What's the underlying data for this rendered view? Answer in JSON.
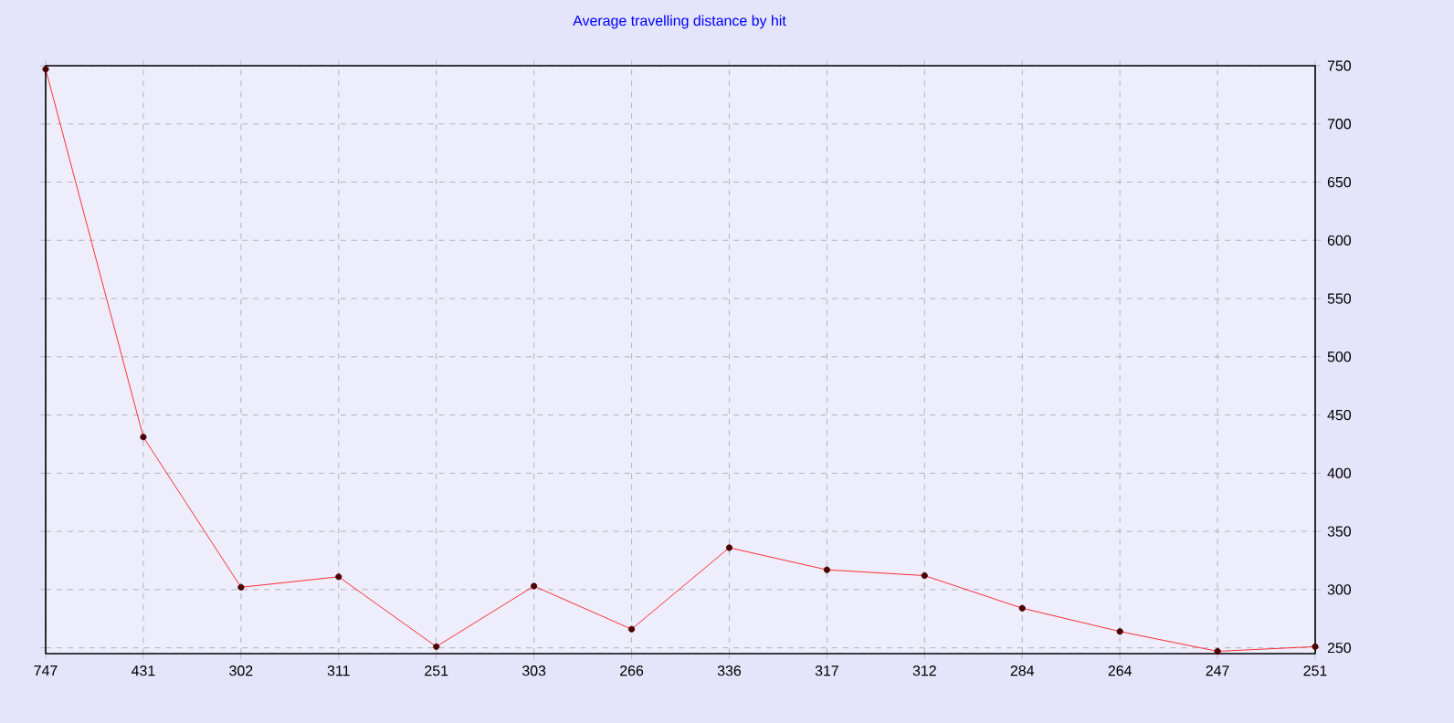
{
  "chart_data": {
    "type": "line",
    "title": "Average travelling distance by hit",
    "categories": [
      "747",
      "431",
      "302",
      "311",
      "251",
      "303",
      "266",
      "336",
      "317",
      "312",
      "284",
      "264",
      "247",
      "251"
    ],
    "values": [
      747,
      431,
      302,
      311,
      251,
      303,
      266,
      336,
      317,
      312,
      284,
      264,
      247,
      251
    ],
    "color": "#ff0000",
    "marker": "circle",
    "line_style": "solid",
    "ylim": [
      245,
      750
    ],
    "yticks": [
      250,
      300,
      350,
      400,
      450,
      500,
      550,
      600,
      650,
      700,
      750
    ],
    "grid": true
  }
}
